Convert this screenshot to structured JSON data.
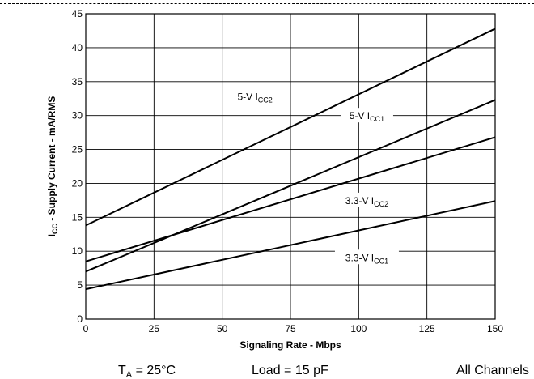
{
  "chart_data": {
    "type": "line",
    "xlabel": "Signaling Rate - Mbps",
    "ylabel": {
      "main": "I",
      "sub": "CC",
      "rest": " - Supply Current - mA/RMS"
    },
    "xlim": [
      0,
      150
    ],
    "ylim": [
      0,
      45
    ],
    "x_ticks": [
      0,
      25,
      50,
      75,
      100,
      125,
      150
    ],
    "y_ticks": [
      0,
      5,
      10,
      15,
      20,
      25,
      30,
      35,
      40,
      45
    ],
    "grid": true,
    "series": [
      {
        "name": "5-V ICC2",
        "label_main": "5-V I",
        "label_sub": "CC2",
        "x": [
          0,
          150
        ],
        "y": [
          13.8,
          42.8
        ]
      },
      {
        "name": "5-V ICC1",
        "label_main": "5-V I",
        "label_sub": "CC1",
        "x": [
          0,
          150
        ],
        "y": [
          7.0,
          32.3
        ]
      },
      {
        "name": "3.3-V ICC2",
        "label_main": "3.3-V I",
        "label_sub": "CC2",
        "x": [
          0,
          150
        ],
        "y": [
          8.5,
          26.8
        ]
      },
      {
        "name": "3.3-V ICC1",
        "label_main": "3.3-V I",
        "label_sub": "CC1",
        "x": [
          0,
          150
        ],
        "y": [
          4.4,
          17.4
        ]
      }
    ],
    "annotations": [
      {
        "series": 0,
        "x": 62,
        "y": 32.5
      },
      {
        "series": 1,
        "x": 103,
        "y": 29.7
      },
      {
        "series": 2,
        "x": 103,
        "y": 17.2
      },
      {
        "series": 3,
        "x": 103,
        "y": 8.8
      }
    ]
  },
  "conditions": {
    "ta": {
      "main": "T",
      "sub": "A",
      "rest": " = 25°C"
    },
    "load": "Load = 15 pF",
    "channels": "All Channels"
  }
}
